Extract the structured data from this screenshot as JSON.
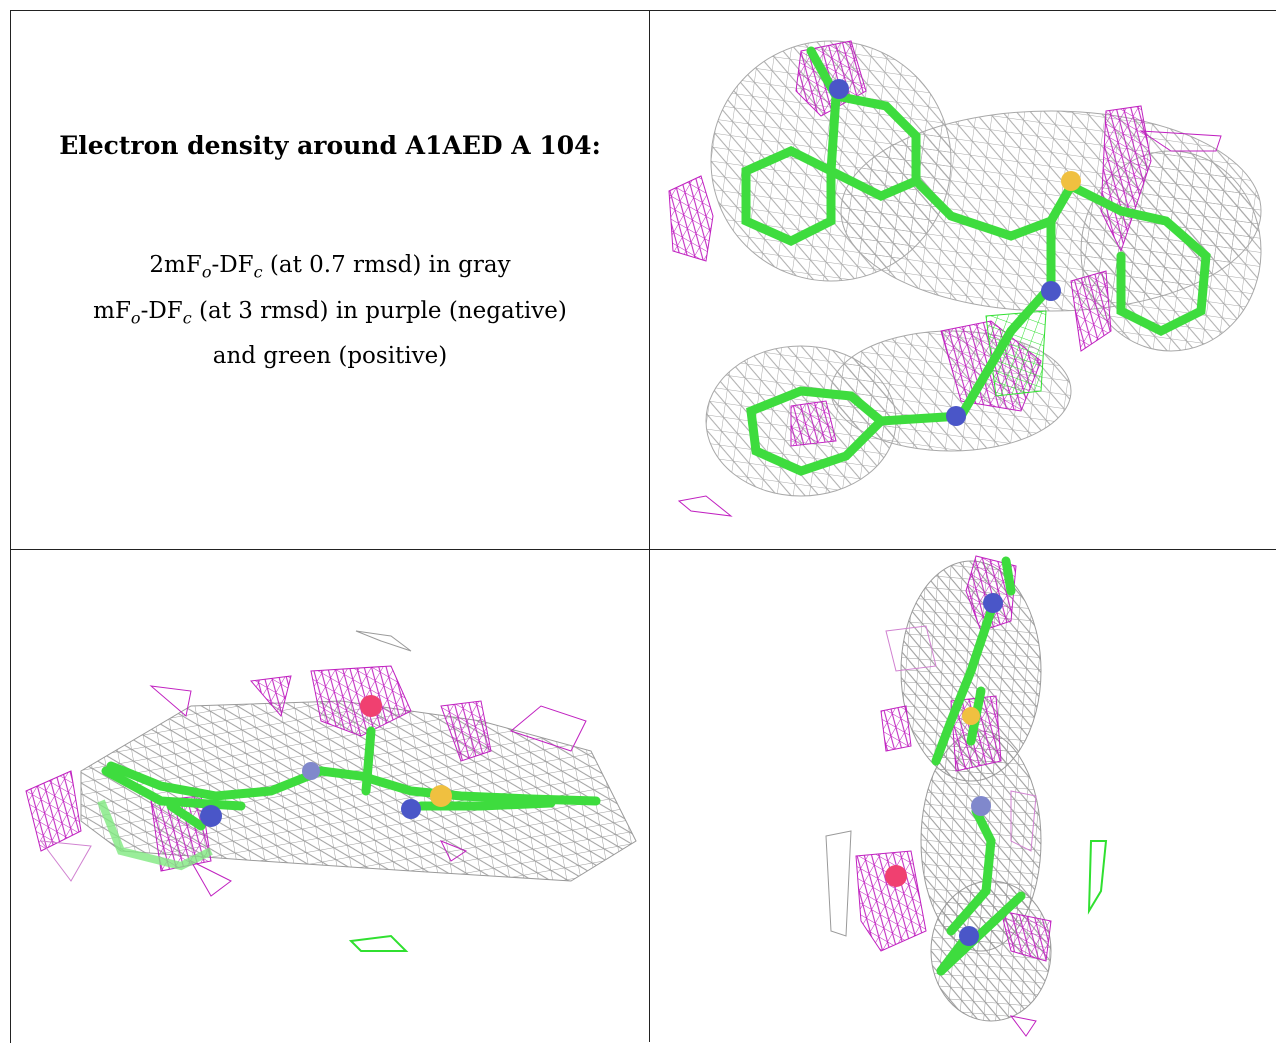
{
  "caption": {
    "title": "Electron density around A1AED A 104:",
    "line1_a": "2mF",
    "line1_sub1": "o",
    "line1_b": "-DF",
    "line1_sub2": "c",
    "line1_c": " (at 0.7 rmsd) in gray",
    "line2_a": "mF",
    "line2_sub1": "o",
    "line2_b": "-DF",
    "line2_sub2": "c",
    "line2_c": " (at 3 rmsd) in purple (negative)",
    "line3": "and green (positive)"
  },
  "colors": {
    "density_2fofc": "#9a9a9a",
    "fofc_negative": "#c020c0",
    "fofc_positive": "#30e030",
    "carbon": "#4ee24e",
    "nitrogen": "#4a56c8",
    "sulfur": "#f0c040",
    "oxygen": "#f04070"
  },
  "panels": [
    "view-top-right",
    "view-bottom-left",
    "view-bottom-right"
  ]
}
